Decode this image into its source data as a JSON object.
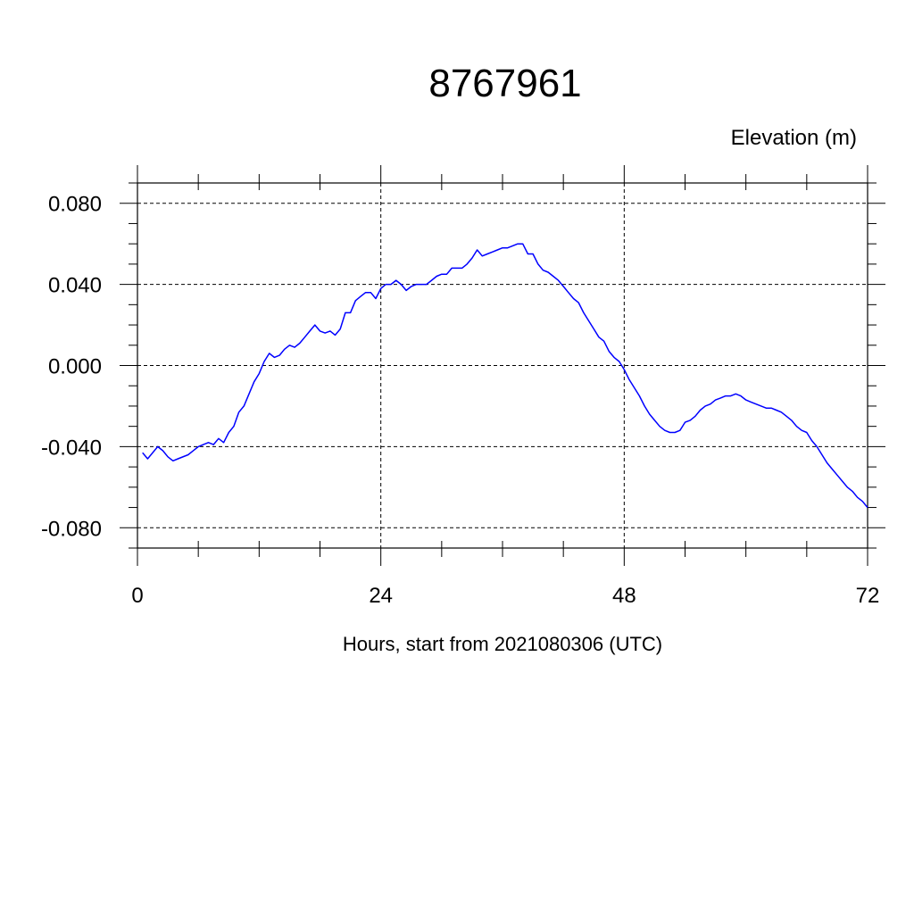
{
  "chart_data": {
    "type": "line",
    "title": "8767961",
    "ylabel_right": "Elevation (m)",
    "xlabel": "Hours, start from 2021080306 (UTC)",
    "xlim": [
      0,
      72
    ],
    "ylim": [
      -0.09,
      0.09
    ],
    "x_ticks": [
      0,
      24,
      48,
      72
    ],
    "x_tick_labels": [
      "0",
      "24",
      "48",
      "72"
    ],
    "y_ticks": [
      -0.08,
      -0.04,
      0.0,
      0.04,
      0.08
    ],
    "y_tick_labels": [
      "-0.080",
      "-0.040",
      "0.000",
      "0.040",
      "0.080"
    ],
    "grid": true,
    "series": [
      {
        "color": "#0000ff",
        "x": [
          0.5,
          1.0,
          2.0,
          2.5,
          3.0,
          3.5,
          4.0,
          5.0,
          5.5,
          6.0,
          6.5,
          7.0,
          7.5,
          8.0,
          8.5,
          9.0,
          9.5,
          10.0,
          10.5,
          11.0,
          11.5,
          12.0,
          12.5,
          13.0,
          13.5,
          14.0,
          14.5,
          15.0,
          15.5,
          16.0,
          16.5,
          17.0,
          17.5,
          18.0,
          18.5,
          19.0,
          19.5,
          20.0,
          20.5,
          21.0,
          21.5,
          22.0,
          22.5,
          23.0,
          23.5,
          24.0,
          24.5,
          25.0,
          25.5,
          26.0,
          26.5,
          27.0,
          27.5,
          28.0,
          28.5,
          29.0,
          29.5,
          30.0,
          30.5,
          31.0,
          31.5,
          32.0,
          32.5,
          33.0,
          33.5,
          34.0,
          34.5,
          35.0,
          35.5,
          36.0,
          36.5,
          37.0,
          37.5,
          38.0,
          38.5,
          39.0,
          39.5,
          40.0,
          40.5,
          41.0,
          41.5,
          42.0,
          42.5,
          43.0,
          43.5,
          44.0,
          44.5,
          45.0,
          45.5,
          46.0,
          46.5,
          47.0,
          47.5,
          48.0,
          48.5,
          49.0,
          49.5,
          50.0,
          50.5,
          51.0,
          51.5,
          52.0,
          52.5,
          53.0,
          53.5,
          54.0,
          54.5,
          55.0,
          55.5,
          56.0,
          56.5,
          57.0,
          57.5,
          58.0,
          58.5,
          59.0,
          59.5,
          60.0,
          60.5,
          61.0,
          61.5,
          62.0,
          62.5,
          63.0,
          63.5,
          64.0,
          64.5,
          65.0,
          65.5,
          66.0,
          66.5,
          67.0,
          67.5,
          68.0,
          68.5,
          69.0,
          69.5,
          70.0,
          70.5,
          71.0,
          71.5,
          72.0
        ],
        "y": [
          -0.043,
          -0.046,
          -0.04,
          -0.042,
          -0.045,
          -0.047,
          -0.046,
          -0.044,
          -0.042,
          -0.04,
          -0.039,
          -0.038,
          -0.039,
          -0.036,
          -0.038,
          -0.033,
          -0.03,
          -0.023,
          -0.02,
          -0.014,
          -0.008,
          -0.004,
          0.002,
          0.006,
          0.004,
          0.005,
          0.008,
          0.01,
          0.009,
          0.011,
          0.014,
          0.017,
          0.02,
          0.017,
          0.016,
          0.017,
          0.015,
          0.018,
          0.026,
          0.026,
          0.032,
          0.034,
          0.036,
          0.036,
          0.033,
          0.038,
          0.04,
          0.04,
          0.042,
          0.04,
          0.037,
          0.039,
          0.04,
          0.04,
          0.04,
          0.042,
          0.044,
          0.045,
          0.045,
          0.048,
          0.048,
          0.048,
          0.05,
          0.053,
          0.057,
          0.054,
          0.055,
          0.056,
          0.057,
          0.058,
          0.058,
          0.059,
          0.06,
          0.06,
          0.055,
          0.055,
          0.05,
          0.047,
          0.046,
          0.044,
          0.042,
          0.039,
          0.036,
          0.033,
          0.031,
          0.026,
          0.022,
          0.018,
          0.014,
          0.012,
          0.007,
          0.004,
          0.002,
          -0.002,
          -0.007,
          -0.011,
          -0.015,
          -0.02,
          -0.024,
          -0.027,
          -0.03,
          -0.032,
          -0.033,
          -0.033,
          -0.032,
          -0.028,
          -0.027,
          -0.025,
          -0.022,
          -0.02,
          -0.019,
          -0.017,
          -0.016,
          -0.015,
          -0.015,
          -0.014,
          -0.015,
          -0.017,
          -0.018,
          -0.019,
          -0.02,
          -0.021,
          -0.021,
          -0.022,
          -0.023,
          -0.025,
          -0.027,
          -0.03,
          -0.032,
          -0.033,
          -0.037,
          -0.04,
          -0.044,
          -0.048,
          -0.051,
          -0.054,
          -0.057,
          -0.06,
          -0.062,
          -0.065,
          -0.067,
          -0.07
        ]
      }
    ]
  }
}
